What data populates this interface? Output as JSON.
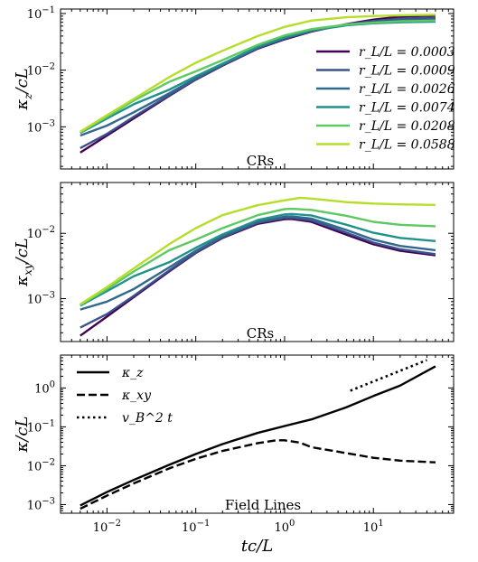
{
  "chart_data": [
    {
      "type": "line",
      "panel": "top",
      "ylabel": "κ_z/cL",
      "annotation": "CRs",
      "xscale": "log",
      "yscale": "log",
      "xlim": [
        0.003,
        80
      ],
      "ylim": [
        0.00018,
        0.12
      ],
      "yticks": [
        0.001,
        0.01,
        0.1
      ],
      "ytick_labels": [
        "10^-3",
        "10^-2",
        "10^-1"
      ],
      "grid": false,
      "legend_position": "right",
      "series": [
        {
          "name": "r_L/L = 0.0003",
          "color": "#440154",
          "x": [
            0.005,
            0.01,
            0.02,
            0.05,
            0.1,
            0.2,
            0.5,
            1,
            2,
            5,
            10,
            20,
            50
          ],
          "y": [
            0.00035,
            0.0007,
            0.0014,
            0.0035,
            0.0068,
            0.012,
            0.024,
            0.035,
            0.048,
            0.065,
            0.078,
            0.088,
            0.092
          ]
        },
        {
          "name": "r_L/L = 0.0009",
          "color": "#3b528b",
          "x": [
            0.005,
            0.01,
            0.02,
            0.05,
            0.1,
            0.2,
            0.5,
            1,
            2,
            5,
            10,
            20,
            50
          ],
          "y": [
            0.00042,
            0.00075,
            0.0015,
            0.0036,
            0.0069,
            0.0122,
            0.0245,
            0.036,
            0.049,
            0.064,
            0.074,
            0.081,
            0.085
          ]
        },
        {
          "name": "r_L/L = 0.0026",
          "color": "#31688e",
          "x": [
            0.005,
            0.01,
            0.02,
            0.05,
            0.1,
            0.2,
            0.5,
            1,
            2,
            5,
            10,
            20,
            50
          ],
          "y": [
            0.0007,
            0.00105,
            0.0018,
            0.0039,
            0.0072,
            0.0125,
            0.025,
            0.037,
            0.05,
            0.064,
            0.071,
            0.076,
            0.078
          ]
        },
        {
          "name": "r_L/L = 0.0074",
          "color": "#21918c",
          "x": [
            0.005,
            0.01,
            0.02,
            0.05,
            0.1,
            0.2,
            0.5,
            1,
            2,
            5,
            10,
            20,
            50
          ],
          "y": [
            0.00078,
            0.0014,
            0.0025,
            0.0045,
            0.0078,
            0.013,
            0.026,
            0.038,
            0.05,
            0.062,
            0.067,
            0.07,
            0.072
          ]
        },
        {
          "name": "r_L/L = 0.0208",
          "color": "#5ec962",
          "x": [
            0.005,
            0.01,
            0.02,
            0.05,
            0.1,
            0.2,
            0.5,
            1,
            2,
            5,
            10,
            20,
            50
          ],
          "y": [
            0.0008,
            0.0015,
            0.0029,
            0.0062,
            0.0095,
            0.015,
            0.028,
            0.041,
            0.053,
            0.064,
            0.069,
            0.073,
            0.075
          ]
        },
        {
          "name": "r_L/L = 0.0588",
          "color": "#b5de2b",
          "x": [
            0.005,
            0.01,
            0.02,
            0.05,
            0.1,
            0.2,
            0.5,
            1,
            2,
            5,
            10,
            20,
            50
          ],
          "y": [
            0.00082,
            0.0016,
            0.0031,
            0.0075,
            0.0135,
            0.022,
            0.04,
            0.058,
            0.075,
            0.086,
            0.09,
            0.093,
            0.095
          ]
        }
      ]
    },
    {
      "type": "line",
      "panel": "middle",
      "ylabel": "κ_xy/cL",
      "annotation": "CRs",
      "xscale": "log",
      "yscale": "log",
      "xlim": [
        0.003,
        80
      ],
      "ylim": [
        0.00022,
        0.06
      ],
      "yticks": [
        0.001,
        0.01
      ],
      "ytick_labels": [
        "10^-3",
        "10^-2"
      ],
      "grid": false,
      "series": [
        {
          "name": "r_L/L = 0.0003",
          "color": "#440154",
          "x": [
            0.005,
            0.01,
            0.02,
            0.05,
            0.1,
            0.2,
            0.5,
            1,
            1.2,
            2,
            5,
            10,
            20,
            50
          ],
          "y": [
            0.00027,
            0.00053,
            0.00105,
            0.0026,
            0.005,
            0.0085,
            0.014,
            0.0165,
            0.0166,
            0.015,
            0.0095,
            0.0068,
            0.0054,
            0.0046
          ]
        },
        {
          "name": "r_L/L = 0.0009",
          "color": "#3b528b",
          "x": [
            0.005,
            0.01,
            0.02,
            0.05,
            0.1,
            0.2,
            0.5,
            1,
            1.2,
            2,
            5,
            10,
            20,
            50
          ],
          "y": [
            0.00036,
            0.00058,
            0.0011,
            0.0027,
            0.0051,
            0.0087,
            0.0145,
            0.0172,
            0.0173,
            0.0158,
            0.0102,
            0.0072,
            0.0057,
            0.0048
          ]
        },
        {
          "name": "r_L/L = 0.0026",
          "color": "#31688e",
          "x": [
            0.005,
            0.01,
            0.02,
            0.05,
            0.1,
            0.2,
            0.5,
            1,
            1.2,
            2,
            5,
            10,
            20,
            50
          ],
          "y": [
            0.00068,
            0.0009,
            0.0014,
            0.003,
            0.0054,
            0.009,
            0.015,
            0.018,
            0.0182,
            0.0168,
            0.0112,
            0.008,
            0.0064,
            0.0055
          ]
        },
        {
          "name": "r_L/L = 0.0074",
          "color": "#21918c",
          "x": [
            0.005,
            0.01,
            0.02,
            0.05,
            0.1,
            0.2,
            0.5,
            1,
            1.2,
            2,
            5,
            10,
            20,
            50
          ],
          "y": [
            0.00078,
            0.0013,
            0.0022,
            0.0036,
            0.006,
            0.0096,
            0.016,
            0.0195,
            0.0198,
            0.0188,
            0.0135,
            0.0102,
            0.0085,
            0.0076
          ]
        },
        {
          "name": "r_L/L = 0.0208",
          "color": "#5ec962",
          "x": [
            0.005,
            0.01,
            0.02,
            0.05,
            0.1,
            0.2,
            0.5,
            1,
            1.2,
            2,
            5,
            10,
            20,
            50
          ],
          "y": [
            0.0008,
            0.0014,
            0.0026,
            0.0055,
            0.008,
            0.012,
            0.019,
            0.0235,
            0.0238,
            0.0228,
            0.0185,
            0.015,
            0.0135,
            0.0128
          ]
        },
        {
          "name": "r_L/L = 0.0588",
          "color": "#b5de2b",
          "x": [
            0.005,
            0.01,
            0.02,
            0.05,
            0.1,
            0.2,
            0.5,
            1,
            1.5,
            2,
            5,
            10,
            20,
            50
          ],
          "y": [
            0.00082,
            0.0015,
            0.0029,
            0.0068,
            0.012,
            0.019,
            0.027,
            0.032,
            0.035,
            0.034,
            0.03,
            0.0285,
            0.0278,
            0.0272
          ]
        }
      ]
    },
    {
      "type": "line",
      "panel": "bottom",
      "ylabel": "κ/cL",
      "xlabel": "tc/L",
      "annotation": "Field Lines",
      "xscale": "log",
      "yscale": "log",
      "xlim": [
        0.003,
        80
      ],
      "ylim": [
        0.0006,
        7
      ],
      "yticks": [
        0.001,
        0.01,
        0.1,
        1
      ],
      "ytick_labels": [
        "10^-3",
        "10^-2",
        "10^-1",
        "10^0"
      ],
      "xticks": [
        0.01,
        0.1,
        1,
        10
      ],
      "xtick_labels": [
        "10^-2",
        "10^-1",
        "10^0",
        "10^1"
      ],
      "grid": false,
      "legend_position": "top-left",
      "series": [
        {
          "name": "κ_z",
          "style": "solid",
          "color": "#000000",
          "x": [
            0.005,
            0.01,
            0.02,
            0.05,
            0.1,
            0.2,
            0.5,
            1,
            2,
            5,
            10,
            20,
            50
          ],
          "y": [
            0.00095,
            0.0021,
            0.0043,
            0.0105,
            0.02,
            0.036,
            0.07,
            0.105,
            0.155,
            0.32,
            0.62,
            1.15,
            3.6
          ]
        },
        {
          "name": "κ_xy",
          "style": "dashed",
          "color": "#000000",
          "x": [
            0.005,
            0.01,
            0.02,
            0.05,
            0.1,
            0.2,
            0.5,
            0.8,
            1,
            1.5,
            2,
            5,
            10,
            20,
            50
          ],
          "y": [
            0.00078,
            0.0017,
            0.0035,
            0.0085,
            0.015,
            0.024,
            0.038,
            0.045,
            0.045,
            0.039,
            0.03,
            0.021,
            0.016,
            0.0135,
            0.0122
          ]
        },
        {
          "name": "v_B^2 t",
          "style": "dotted",
          "color": "#000000",
          "x": [
            5.5,
            40
          ],
          "y": [
            0.85,
            5.2
          ]
        }
      ]
    }
  ]
}
